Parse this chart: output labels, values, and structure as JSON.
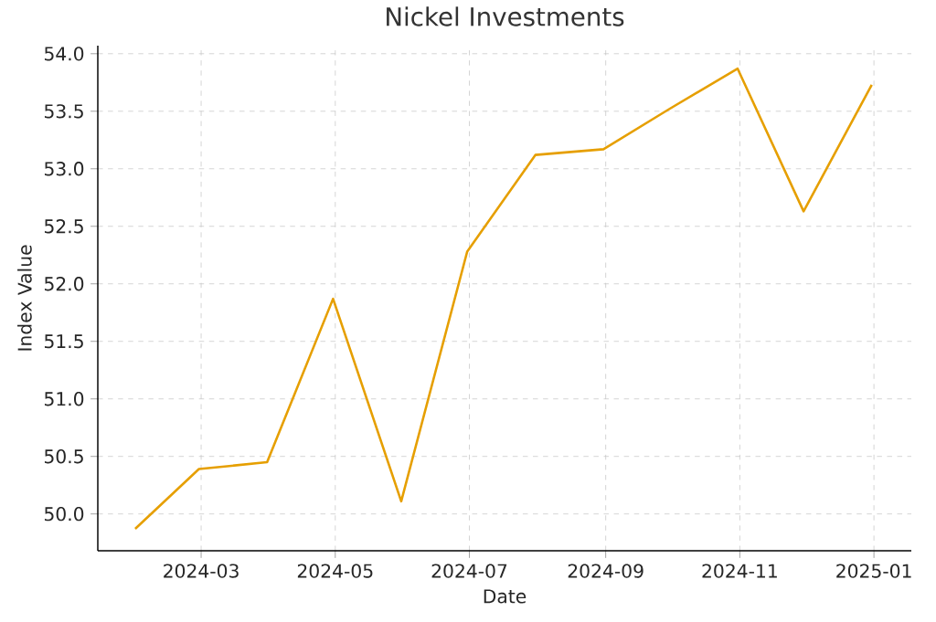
{
  "chart_data": {
    "type": "line",
    "title": "Nickel Investments",
    "xlabel": "Date",
    "ylabel": "Index Value",
    "x": [
      "2024-01-31",
      "2024-02-29",
      "2024-03-31",
      "2024-04-30",
      "2024-05-31",
      "2024-06-30",
      "2024-07-31",
      "2024-08-31",
      "2024-09-30",
      "2024-10-31",
      "2024-11-30",
      "2024-12-31"
    ],
    "series": [
      {
        "color": "#e69f00",
        "values": [
          49.87,
          50.39,
          50.45,
          51.87,
          50.11,
          52.28,
          53.12,
          53.17,
          53.52,
          53.87,
          52.63,
          53.73
        ]
      }
    ],
    "xlim": [
      "2024-01-14",
      "2025-01-18"
    ],
    "xticks": [
      "2024-03",
      "2024-05",
      "2024-07",
      "2024-09",
      "2024-11",
      "2025-01"
    ],
    "ylim": [
      49.68,
      54.07
    ],
    "yticks": [
      {
        "value": 50,
        "label": "50.0"
      },
      {
        "value": 50.5,
        "label": "50.5"
      },
      {
        "value": 51,
        "label": "51.0"
      },
      {
        "value": 51.5,
        "label": "51.5"
      },
      {
        "value": 52,
        "label": "52.0"
      },
      {
        "value": 52.5,
        "label": "52.5"
      },
      {
        "value": 53,
        "label": "53.0"
      },
      {
        "value": 53.5,
        "label": "53.5"
      },
      {
        "value": 54,
        "label": "54.0"
      }
    ],
    "grid": true,
    "marker": "none",
    "line_style": "solid"
  }
}
